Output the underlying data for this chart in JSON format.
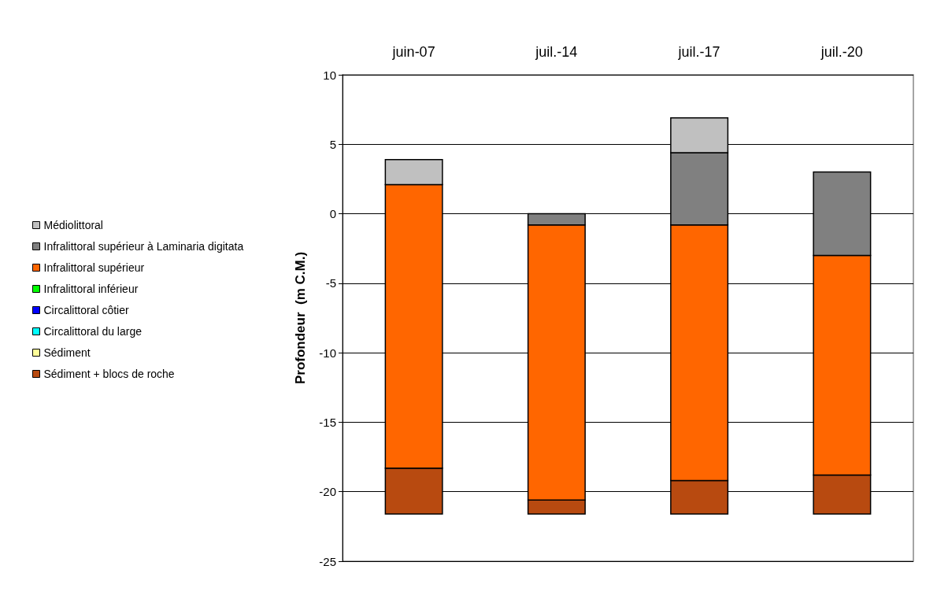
{
  "chart_data": {
    "type": "bar",
    "ylabel": "Profondeur  (m C.M.)",
    "categories": [
      "juin-07",
      "juil.-14",
      "juil.-17",
      "juil.-20"
    ],
    "series": [
      {
        "name": "Sédiment + blocs de roche",
        "color": "#b84a10",
        "base": [
          -21.6,
          -21.6,
          -21.6,
          -21.6
        ],
        "values": [
          3.3,
          1.0,
          2.4,
          2.8
        ]
      },
      {
        "name": "Sédiment",
        "color": "#ffff99",
        "values": [
          null,
          null,
          null,
          null
        ]
      },
      {
        "name": "Circalittoral du large",
        "color": "#00ffff",
        "values": [
          null,
          null,
          null,
          null
        ]
      },
      {
        "name": "Circalittoral côtier",
        "color": "#0000ff",
        "values": [
          null,
          null,
          null,
          null
        ]
      },
      {
        "name": "Infralittoral inférieur",
        "color": "#00ff00",
        "values": [
          null,
          null,
          null,
          null
        ]
      },
      {
        "name": "Infralittoral supérieur",
        "color": "#ff6600",
        "base": [
          -18.3,
          -20.6,
          -19.2,
          -18.8
        ],
        "values": [
          20.4,
          19.8,
          18.4,
          15.8
        ]
      },
      {
        "name": "Infralittoral supérieur à Laminaria digitata",
        "color": "#808080",
        "base": [
          null,
          -0.8,
          -0.8,
          -3.0
        ],
        "values": [
          null,
          0.8,
          5.2,
          6.0
        ]
      },
      {
        "name": "Médiolittoral",
        "color": "#c0c0c0",
        "base": [
          2.1,
          null,
          4.4,
          null
        ],
        "values": [
          1.8,
          null,
          2.5,
          null
        ]
      }
    ],
    "ylim": [
      -25,
      10
    ],
    "yticks": [
      -25,
      -20,
      -15,
      -10,
      -5,
      0,
      5,
      10
    ],
    "grid": "y",
    "legend": "left"
  }
}
